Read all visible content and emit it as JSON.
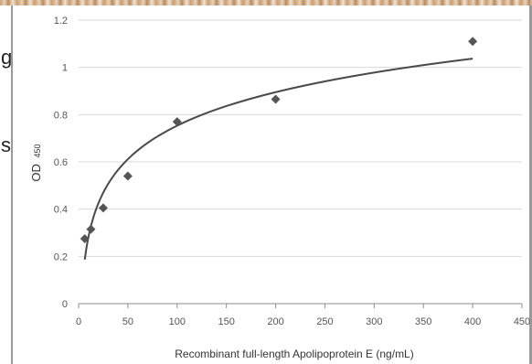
{
  "fragment": {
    "line1": "g",
    "line2": "s"
  },
  "colors": {
    "grid": "#d9d9d9",
    "axis": "#8c8c8c",
    "curve": "#4a4a4a",
    "points": "#555555"
  },
  "chart_data": {
    "type": "scatter",
    "title": "",
    "xlabel": "Recombinant full-length Apolipoprotein E (ng/mL)",
    "ylabel_main": "OD",
    "ylabel_sub": "450",
    "xlim": [
      0,
      450
    ],
    "ylim": [
      0,
      1.2
    ],
    "x_ticks": [
      0,
      50,
      100,
      150,
      200,
      250,
      300,
      350,
      400,
      450
    ],
    "y_ticks": [
      0,
      0.2,
      0.4,
      0.6,
      0.8,
      1.0,
      1.2
    ],
    "y_tick_labels": [
      "0",
      "0.2",
      "0.4",
      "0.6",
      "0.8",
      "1",
      "1.2"
    ],
    "grid": "horizontal",
    "series": [
      {
        "marker": "diamond",
        "x": [
          6.25,
          12.5,
          25,
          50,
          100,
          200,
          400
        ],
        "y": [
          0.275,
          0.315,
          0.405,
          0.54,
          0.77,
          0.865,
          1.11
        ]
      }
    ],
    "trendline": {
      "type": "logarithmic",
      "x_start": 6.25,
      "x_end": 400
    }
  }
}
